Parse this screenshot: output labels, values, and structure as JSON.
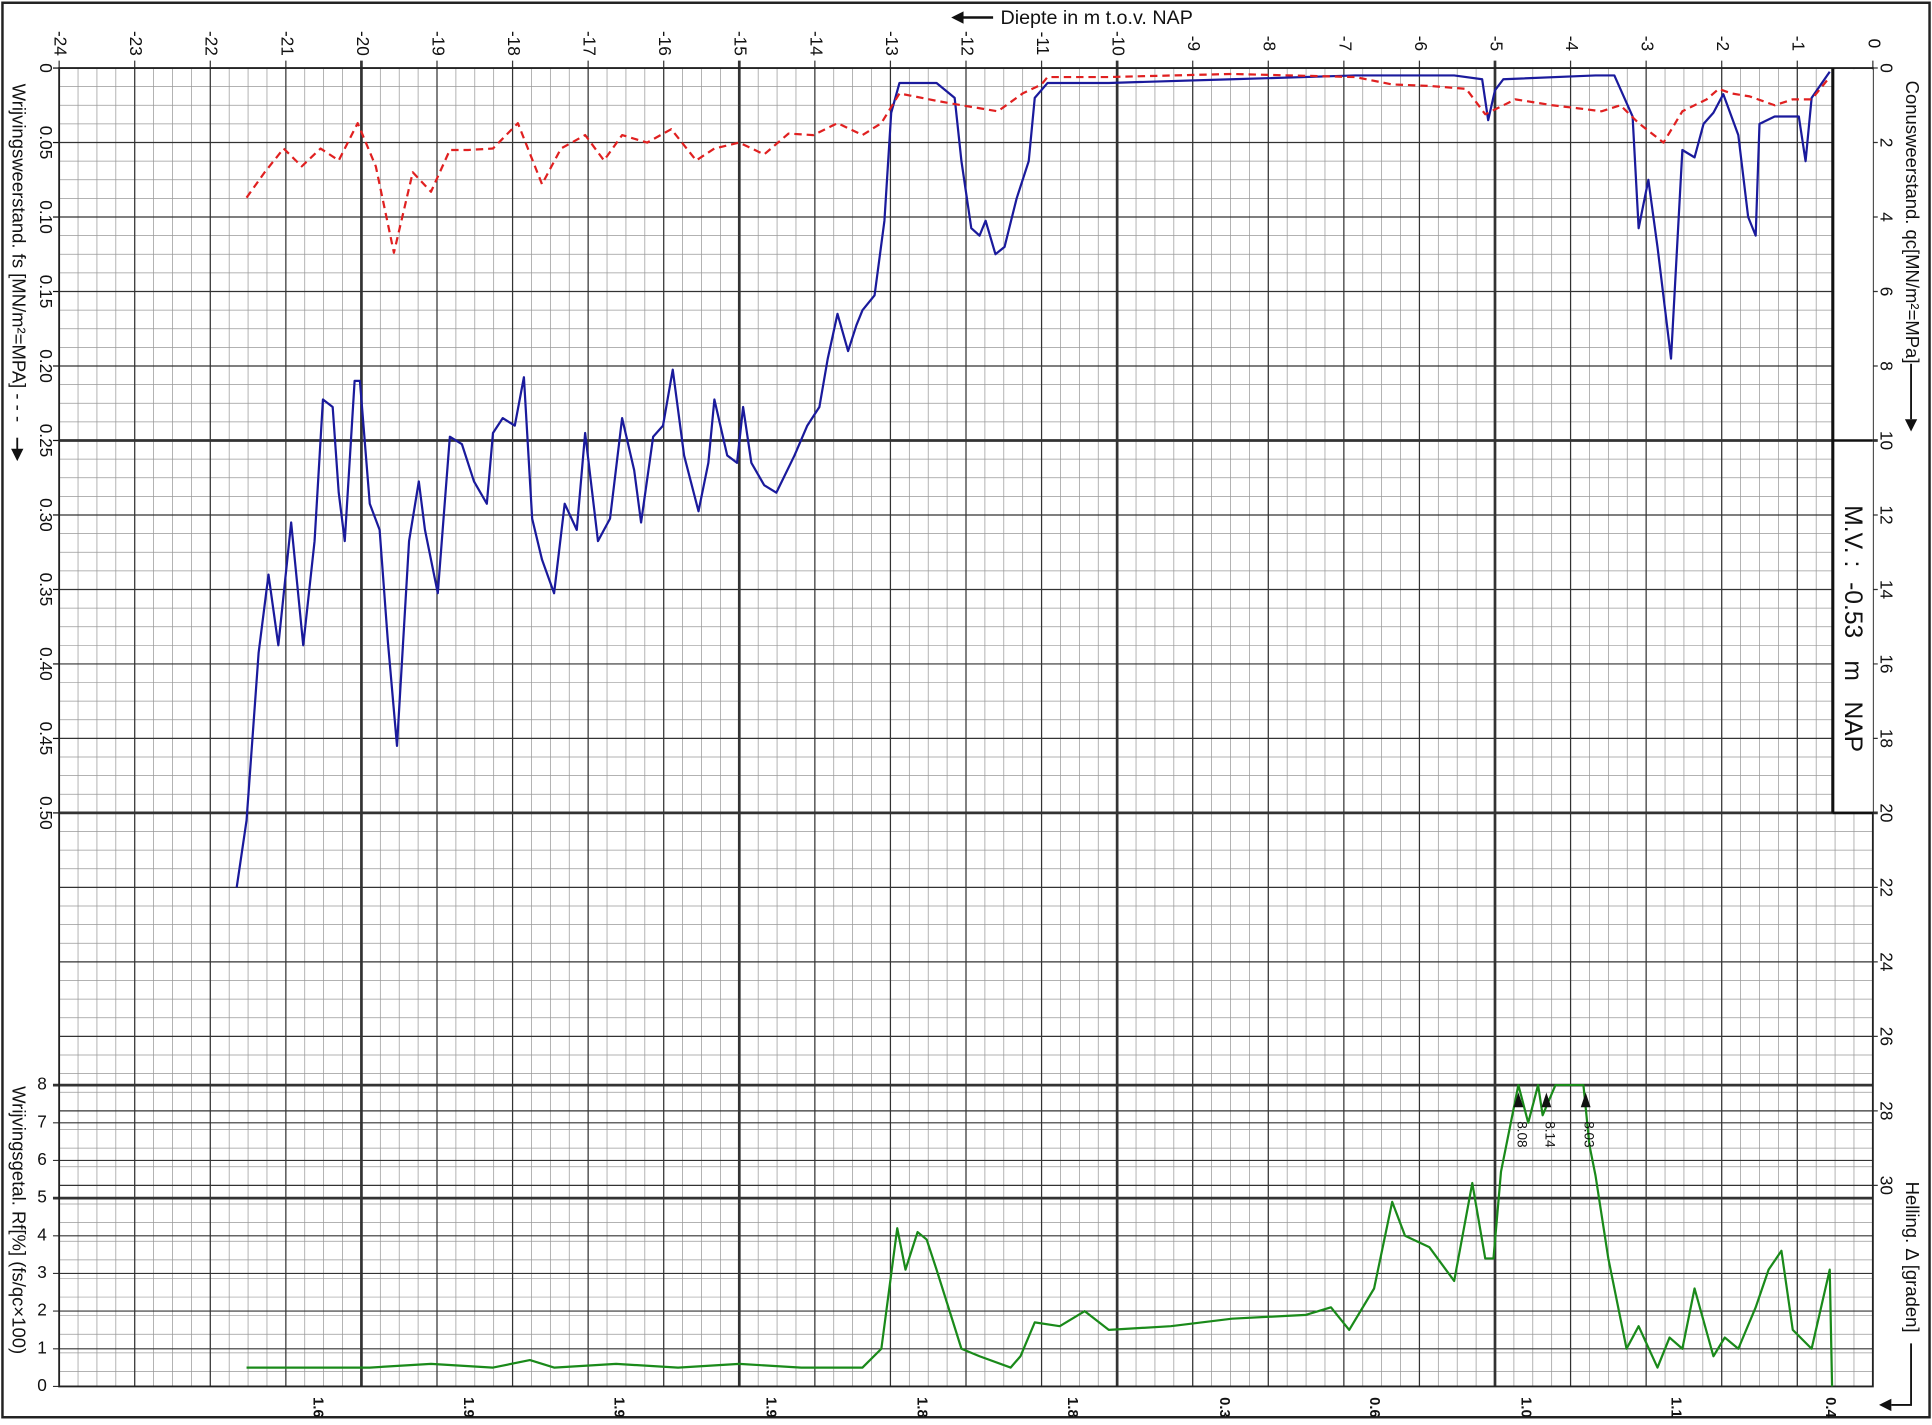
{
  "chart_data": {
    "type": "line",
    "x_label": "Diepte in m t.o.v. NAP",
    "y_label": "Conusweerstand. qc[MN/m²=MPa]",
    "y2_label": "Wrijvingsweerstand. fs [MN/m²=MPA]  - - -",
    "y3_label": "Wrijvingsgetal. Rf[%]  (fs/qc×100)",
    "helling_label": "Helling. Δ [graden]",
    "xlim": [
      -24,
      0
    ],
    "xticks": [
      -24,
      -23,
      -22,
      -21,
      -20,
      -19,
      -18,
      -17,
      -16,
      -15,
      -14,
      -13,
      -12,
      -11,
      -10,
      -9,
      -8,
      -7,
      -6,
      -5,
      -4,
      -3,
      -2,
      -1,
      0
    ],
    "ylim": [
      0,
      35.4
    ],
    "yticks": [
      0,
      2,
      4,
      6,
      8,
      10,
      12,
      14,
      16,
      18,
      20,
      22,
      24,
      26,
      28,
      30
    ],
    "y2lim": [
      0,
      0.885
    ],
    "y2ticks": [
      0,
      0.05,
      {
        "value": 0.1,
        "label": "0.10"
      },
      0.15,
      {
        "value": 0.2,
        "label": "0.20"
      },
      0.25,
      {
        "value": 0.3,
        "label": "0.30"
      },
      0.35,
      {
        "value": 0.4,
        "label": "0.40"
      },
      0.45,
      {
        "value": 0.5,
        "label": "0.50"
      }
    ],
    "y3lim": [
      0,
      35
    ],
    "y3ticks": [
      0,
      1,
      2,
      3,
      4,
      5,
      6,
      7,
      8
    ],
    "grid": true,
    "mv_label": "M.V. :",
    "mv": -0.53,
    "mv_unit": "m   NAP",
    "series": [
      {
        "name": "qc",
        "color": "#1a1a9c",
        "axis": "y",
        "x": [
          -21.65,
          -21.52,
          -21.36,
          -21.23,
          -21.1,
          -20.93,
          -20.77,
          -20.62,
          -20.51,
          -20.38,
          -20.3,
          -20.22,
          -20.09,
          -20.02,
          -19.89,
          -19.76,
          -19.65,
          -19.53,
          -19.37,
          -19.24,
          -19.16,
          -18.99,
          -18.83,
          -18.67,
          -18.51,
          -18.34,
          -18.26,
          -18.13,
          -17.97,
          -17.85,
          -17.74,
          -17.61,
          -17.45,
          -17.31,
          -17.15,
          -17.04,
          -16.87,
          -16.71,
          -16.55,
          -16.39,
          -16.3,
          -16.14,
          -16.01,
          -15.88,
          -15.73,
          -15.54,
          -15.41,
          -15.33,
          -15.16,
          -15.03,
          -14.95,
          -14.84,
          -14.67,
          -14.51,
          -14.27,
          -14.1,
          -13.94,
          -13.83,
          -13.7,
          -13.56,
          -13.45,
          -13.37,
          -13.21,
          -13.08,
          -12.99,
          -12.88,
          -12.39,
          -12.15,
          -12.06,
          -11.93,
          -11.82,
          -11.74,
          -11.61,
          -11.49,
          -11.33,
          -11.17,
          -11.09,
          -10.92,
          -10.11,
          -8.48,
          -6.85,
          -5.54,
          -5.17,
          -5.09,
          -5.0,
          -4.89,
          -3.67,
          -3.42,
          -3.18,
          -3.1,
          -2.97,
          -2.85,
          -2.67,
          -2.52,
          -2.36,
          -2.24,
          -2.11,
          -1.98,
          -1.78,
          -1.65,
          -1.55,
          -1.5,
          -1.3,
          -0.98,
          -0.89,
          -0.81,
          -0.57
        ],
        "values": [
          22.0,
          20.2,
          15.7,
          13.6,
          15.5,
          12.2,
          15.5,
          12.7,
          8.9,
          9.1,
          11.4,
          12.7,
          8.4,
          8.4,
          11.7,
          12.4,
          15.4,
          18.2,
          12.7,
          11.1,
          12.4,
          14.1,
          9.9,
          10.1,
          11.1,
          11.7,
          9.8,
          9.4,
          9.6,
          8.3,
          12.1,
          13.2,
          14.1,
          11.7,
          12.4,
          9.8,
          12.7,
          12.1,
          9.4,
          10.8,
          12.2,
          9.9,
          9.6,
          8.1,
          10.4,
          11.9,
          10.6,
          8.9,
          10.4,
          10.6,
          9.1,
          10.6,
          11.2,
          11.4,
          10.4,
          9.6,
          9.1,
          7.8,
          6.6,
          7.6,
          6.9,
          6.5,
          6.1,
          4.1,
          1.2,
          0.4,
          0.4,
          0.8,
          2.5,
          4.3,
          4.5,
          4.1,
          5.0,
          4.8,
          3.5,
          2.5,
          0.8,
          0.4,
          0.4,
          0.3,
          0.2,
          0.2,
          0.3,
          1.4,
          0.6,
          0.3,
          0.2,
          0.2,
          1.3,
          4.3,
          3.0,
          4.8,
          7.8,
          2.2,
          2.4,
          1.5,
          1.2,
          0.7,
          1.8,
          4.0,
          4.5,
          1.5,
          1.3,
          1.3,
          2.5,
          0.8,
          0.1
        ]
      },
      {
        "name": "fs",
        "color": "#e02020",
        "axis": "y2",
        "dashed": true,
        "x": [
          -21.52,
          -21.28,
          -21.03,
          -20.79,
          -20.54,
          -20.3,
          -20.05,
          -19.81,
          -19.57,
          -19.32,
          -19.08,
          -18.83,
          -18.59,
          -18.26,
          -17.93,
          -17.61,
          -17.36,
          -17.04,
          -16.79,
          -16.55,
          -16.22,
          -15.9,
          -15.57,
          -15.33,
          -15.0,
          -14.67,
          -14.35,
          -14.02,
          -13.7,
          -13.37,
          -13.12,
          -12.88,
          -12.39,
          -12.06,
          -11.82,
          -11.58,
          -11.25,
          -11.0,
          -10.92,
          -10.11,
          -8.48,
          -6.85,
          -6.36,
          -5.87,
          -5.38,
          -5.13,
          -4.73,
          -4.24,
          -3.91,
          -3.59,
          -3.34,
          -3.1,
          -2.77,
          -2.52,
          -2.2,
          -2.04,
          -1.87,
          -1.63,
          -1.3,
          -1.06,
          -0.81,
          -0.57
        ],
        "values": [
          0.087,
          0.07,
          0.054,
          0.066,
          0.054,
          0.062,
          0.037,
          0.066,
          0.124,
          0.07,
          0.083,
          0.055,
          0.055,
          0.054,
          0.037,
          0.078,
          0.054,
          0.045,
          0.062,
          0.045,
          0.05,
          0.041,
          0.062,
          0.054,
          0.05,
          0.058,
          0.044,
          0.045,
          0.037,
          0.045,
          0.037,
          0.017,
          0.022,
          0.025,
          0.027,
          0.029,
          0.017,
          0.011,
          0.006,
          0.006,
          0.004,
          0.006,
          0.011,
          0.012,
          0.014,
          0.031,
          0.021,
          0.025,
          0.027,
          0.029,
          0.025,
          0.037,
          0.05,
          0.029,
          0.021,
          0.014,
          0.017,
          0.019,
          0.025,
          0.021,
          0.021,
          0.006
        ]
      },
      {
        "name": "Rf",
        "color": "#1a8a1a",
        "axis": "y3",
        "x": [
          -21.52,
          -19.89,
          -19.08,
          -18.26,
          -17.77,
          -17.45,
          -16.63,
          -15.81,
          -15.0,
          -14.18,
          -13.37,
          -13.12,
          -12.91,
          -12.8,
          -12.64,
          -12.52,
          -12.39,
          -12.06,
          -11.82,
          -11.41,
          -11.28,
          -11.09,
          -10.76,
          -10.43,
          -10.11,
          -9.29,
          -8.48,
          -7.5,
          -7.17,
          -6.93,
          -6.6,
          -6.36,
          -6.19,
          -5.87,
          -5.54,
          -5.3,
          -5.13,
          -5.02,
          -4.92,
          -4.69,
          -4.56,
          -4.43,
          -4.37,
          -4.2,
          -3.83,
          -3.75,
          -3.67,
          -3.5,
          -3.26,
          -3.1,
          -2.85,
          -2.69,
          -2.52,
          -2.36,
          -2.11,
          -1.96,
          -1.78,
          -1.55,
          -1.38,
          -1.21,
          -1.06,
          -0.81,
          -0.57,
          -0.54
        ],
        "values": [
          0.5,
          0.5,
          0.6,
          0.5,
          0.7,
          0.5,
          0.6,
          0.5,
          0.6,
          0.5,
          0.5,
          1.0,
          4.2,
          3.1,
          4.1,
          3.9,
          3.1,
          1.0,
          0.8,
          0.5,
          0.8,
          1.7,
          1.6,
          2.0,
          1.5,
          1.6,
          1.8,
          1.9,
          2.1,
          1.5,
          2.6,
          4.9,
          4.0,
          3.7,
          2.8,
          5.4,
          3.4,
          3.4,
          5.7,
          8.0,
          7.0,
          8.0,
          7.2,
          8.0,
          8.0,
          6.4,
          5.6,
          3.4,
          1.0,
          1.6,
          0.5,
          1.3,
          1.0,
          2.6,
          0.8,
          1.3,
          1.0,
          2.1,
          3.1,
          3.6,
          1.5,
          1.0,
          3.1,
          0
        ]
      }
    ],
    "rf_exceed": {
      "x": [
        -4.69,
        -4.32,
        -3.8
      ],
      "values": [
        8.08,
        8.14,
        8.03
      ]
    },
    "helling": {
      "x": [
        -20.58,
        -18.59,
        -16.6,
        -14.59,
        -12.59,
        -10.6,
        -8.59,
        -6.6,
        -4.6,
        -2.61,
        -0.57
      ],
      "values": [
        1.6,
        1.9,
        1.9,
        1.9,
        1.8,
        1.8,
        0.3,
        0.6,
        1.0,
        1.1,
        0.4
      ],
      "value_labels": [
        "1.6",
        "1.9",
        "1.9",
        "1.9",
        "1.8",
        "1.8",
        "0.3",
        "0.6",
        "1.0",
        "1.1",
        "0.4"
      ]
    }
  }
}
